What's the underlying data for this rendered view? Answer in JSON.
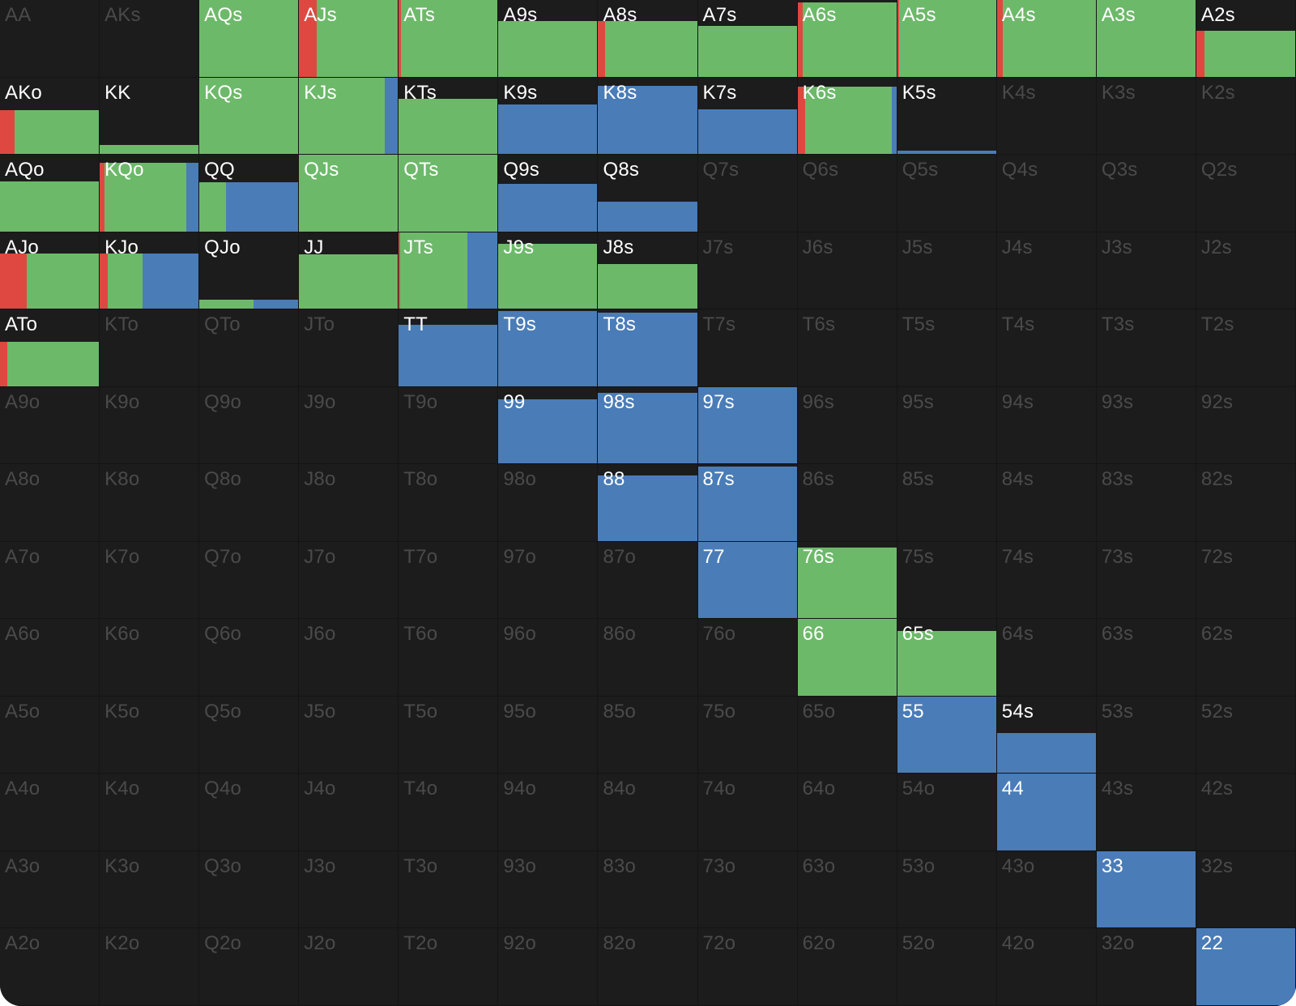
{
  "colors": {
    "red": "#de4841",
    "green": "#6db96a",
    "blue": "#4a7cb8",
    "cell_background": "#1c1c1c",
    "active_text": "#ffffff",
    "inactive_text": "#4a4a4a"
  },
  "grid": {
    "rows": 13,
    "cols": 13,
    "hands": [
      [
        "AA",
        "AKs",
        "AQs",
        "AJs",
        "ATs",
        "A9s",
        "A8s",
        "A7s",
        "A6s",
        "A5s",
        "A4s",
        "A3s",
        "A2s"
      ],
      [
        "AKo",
        "KK",
        "KQs",
        "KJs",
        "KTs",
        "K9s",
        "K8s",
        "K7s",
        "K6s",
        "K5s",
        "K4s",
        "K3s",
        "K2s"
      ],
      [
        "AQo",
        "KQo",
        "QQ",
        "QJs",
        "QTs",
        "Q9s",
        "Q8s",
        "Q7s",
        "Q6s",
        "Q5s",
        "Q4s",
        "Q3s",
        "Q2s"
      ],
      [
        "AJo",
        "KJo",
        "QJo",
        "JJ",
        "JTs",
        "J9s",
        "J8s",
        "J7s",
        "J6s",
        "J5s",
        "J4s",
        "J3s",
        "J2s"
      ],
      [
        "ATo",
        "KTo",
        "QTo",
        "JTo",
        "TT",
        "T9s",
        "T8s",
        "T7s",
        "T6s",
        "T5s",
        "T4s",
        "T3s",
        "T2s"
      ],
      [
        "A9o",
        "K9o",
        "Q9o",
        "J9o",
        "T9o",
        "99",
        "98s",
        "97s",
        "96s",
        "95s",
        "94s",
        "93s",
        "92s"
      ],
      [
        "A8o",
        "K8o",
        "Q8o",
        "J8o",
        "T8o",
        "98o",
        "88",
        "87s",
        "86s",
        "85s",
        "84s",
        "83s",
        "82s"
      ],
      [
        "A7o",
        "K7o",
        "Q7o",
        "J7o",
        "T7o",
        "97o",
        "87o",
        "77",
        "76s",
        "75s",
        "74s",
        "73s",
        "72s"
      ],
      [
        "A6o",
        "K6o",
        "Q6o",
        "J6o",
        "T6o",
        "96o",
        "86o",
        "76o",
        "66",
        "65s",
        "64s",
        "63s",
        "62s"
      ],
      [
        "A5o",
        "K5o",
        "Q5o",
        "J5o",
        "T5o",
        "95o",
        "85o",
        "75o",
        "65o",
        "55",
        "54s",
        "53s",
        "52s"
      ],
      [
        "A4o",
        "K4o",
        "Q4o",
        "J4o",
        "T4o",
        "94o",
        "84o",
        "74o",
        "64o",
        "54o",
        "44",
        "43s",
        "42s"
      ],
      [
        "A3o",
        "K3o",
        "Q3o",
        "J3o",
        "T3o",
        "93o",
        "83o",
        "73o",
        "63o",
        "53o",
        "43o",
        "33",
        "32s"
      ],
      [
        "A2o",
        "K2o",
        "Q2o",
        "J2o",
        "T2o",
        "92o",
        "82o",
        "72o",
        "62o",
        "52o",
        "42o",
        "32o",
        "22"
      ]
    ],
    "frequencies": {
      "AQs": {
        "total": 1.0,
        "red": 0.0,
        "green": 1.0,
        "blue": 0.0
      },
      "AJs": {
        "total": 1.0,
        "red": 0.18,
        "green": 0.82,
        "blue": 0.0
      },
      "ATs": {
        "total": 1.0,
        "red": 0.02,
        "green": 0.98,
        "blue": 0.0
      },
      "A9s": {
        "total": 0.72,
        "red": 0.0,
        "green": 1.0,
        "blue": 0.0
      },
      "A8s": {
        "total": 0.72,
        "red": 0.07,
        "green": 0.93,
        "blue": 0.0
      },
      "A7s": {
        "total": 0.66,
        "red": 0.0,
        "green": 1.0,
        "blue": 0.0
      },
      "A6s": {
        "total": 0.97,
        "red": 0.05,
        "green": 0.95,
        "blue": 0.0
      },
      "A5s": {
        "total": 1.0,
        "red": 0.02,
        "green": 0.98,
        "blue": 0.0
      },
      "A4s": {
        "total": 1.0,
        "red": 0.06,
        "green": 0.94,
        "blue": 0.0
      },
      "A3s": {
        "total": 1.0,
        "red": 0.0,
        "green": 1.0,
        "blue": 0.0
      },
      "A2s": {
        "total": 0.6,
        "red": 0.08,
        "green": 0.92,
        "blue": 0.0
      },
      "AKo": {
        "total": 0.57,
        "red": 0.15,
        "green": 0.85,
        "blue": 0.0
      },
      "KK": {
        "total": 0.12,
        "red": 0.0,
        "green": 1.0,
        "blue": 0.0
      },
      "KQs": {
        "total": 1.0,
        "red": 0.0,
        "green": 1.0,
        "blue": 0.0
      },
      "KJs": {
        "total": 1.0,
        "red": 0.0,
        "green": 0.87,
        "blue": 0.13
      },
      "KTs": {
        "total": 0.72,
        "red": 0.0,
        "green": 1.0,
        "blue": 0.0
      },
      "K9s": {
        "total": 0.65,
        "red": 0.0,
        "green": 0.0,
        "blue": 1.0
      },
      "K8s": {
        "total": 0.89,
        "red": 0.0,
        "green": 0.0,
        "blue": 1.0
      },
      "K7s": {
        "total": 0.58,
        "red": 0.0,
        "green": 0.0,
        "blue": 1.0
      },
      "K6s": {
        "total": 0.88,
        "red": 0.08,
        "green": 0.87,
        "blue": 0.05
      },
      "K5s": {
        "total": 0.04,
        "red": 0.0,
        "green": 0.0,
        "blue": 1.0
      },
      "AQo": {
        "total": 0.65,
        "red": 0.0,
        "green": 1.0,
        "blue": 0.0
      },
      "KQo": {
        "total": 0.9,
        "red": 0.05,
        "green": 0.83,
        "blue": 0.12
      },
      "QQ": {
        "total": 0.64,
        "red": 0.0,
        "green": 0.27,
        "blue": 0.73
      },
      "QJs": {
        "total": 1.0,
        "red": 0.0,
        "green": 1.0,
        "blue": 0.0
      },
      "QTs": {
        "total": 1.0,
        "red": 0.0,
        "green": 1.0,
        "blue": 0.0
      },
      "Q9s": {
        "total": 0.62,
        "red": 0.0,
        "green": 0.0,
        "blue": 1.0
      },
      "Q8s": {
        "total": 0.39,
        "red": 0.0,
        "green": 0.0,
        "blue": 1.0
      },
      "AJo": {
        "total": 0.72,
        "red": 0.27,
        "green": 0.73,
        "blue": 0.0
      },
      "KJo": {
        "total": 0.72,
        "red": 0.08,
        "green": 0.35,
        "blue": 0.57
      },
      "QJo": {
        "total": 0.12,
        "red": 0.0,
        "green": 0.55,
        "blue": 0.45
      },
      "JJ": {
        "total": 0.71,
        "red": 0.0,
        "green": 1.0,
        "blue": 0.0
      },
      "JTs": {
        "total": 1.0,
        "red": 0.01,
        "green": 0.68,
        "blue": 0.31
      },
      "J9s": {
        "total": 0.85,
        "red": 0.0,
        "green": 1.0,
        "blue": 0.0
      },
      "J8s": {
        "total": 0.58,
        "red": 0.0,
        "green": 1.0,
        "blue": 0.0
      },
      "ATo": {
        "total": 0.58,
        "red": 0.07,
        "green": 0.93,
        "blue": 0.0
      },
      "TT": {
        "total": 0.8,
        "red": 0.0,
        "green": 0.0,
        "blue": 1.0
      },
      "T9s": {
        "total": 0.98,
        "red": 0.0,
        "green": 0.0,
        "blue": 1.0
      },
      "T8s": {
        "total": 0.96,
        "red": 0.0,
        "green": 0.0,
        "blue": 1.0
      },
      "99": {
        "total": 0.84,
        "red": 0.0,
        "green": 0.0,
        "blue": 1.0
      },
      "98s": {
        "total": 0.92,
        "red": 0.0,
        "green": 0.0,
        "blue": 1.0
      },
      "97s": {
        "total": 1.0,
        "red": 0.0,
        "green": 0.0,
        "blue": 1.0
      },
      "88": {
        "total": 0.85,
        "red": 0.0,
        "green": 0.0,
        "blue": 1.0
      },
      "87s": {
        "total": 0.97,
        "red": 0.0,
        "green": 0.0,
        "blue": 1.0
      },
      "77": {
        "total": 1.0,
        "red": 0.0,
        "green": 0.0,
        "blue": 1.0
      },
      "76s": {
        "total": 0.92,
        "red": 0.0,
        "green": 1.0,
        "blue": 0.0
      },
      "66": {
        "total": 1.0,
        "red": 0.0,
        "green": 1.0,
        "blue": 0.0
      },
      "65s": {
        "total": 0.84,
        "red": 0.0,
        "green": 1.0,
        "blue": 0.0
      },
      "55": {
        "total": 1.0,
        "red": 0.0,
        "green": 0.0,
        "blue": 1.0
      },
      "54s": {
        "total": 0.52,
        "red": 0.0,
        "green": 0.0,
        "blue": 1.0
      },
      "44": {
        "total": 1.0,
        "red": 0.0,
        "green": 0.0,
        "blue": 1.0
      },
      "33": {
        "total": 1.0,
        "red": 0.0,
        "green": 0.0,
        "blue": 1.0
      },
      "22": {
        "total": 1.0,
        "red": 0.0,
        "green": 0.0,
        "blue": 1.0
      }
    }
  }
}
